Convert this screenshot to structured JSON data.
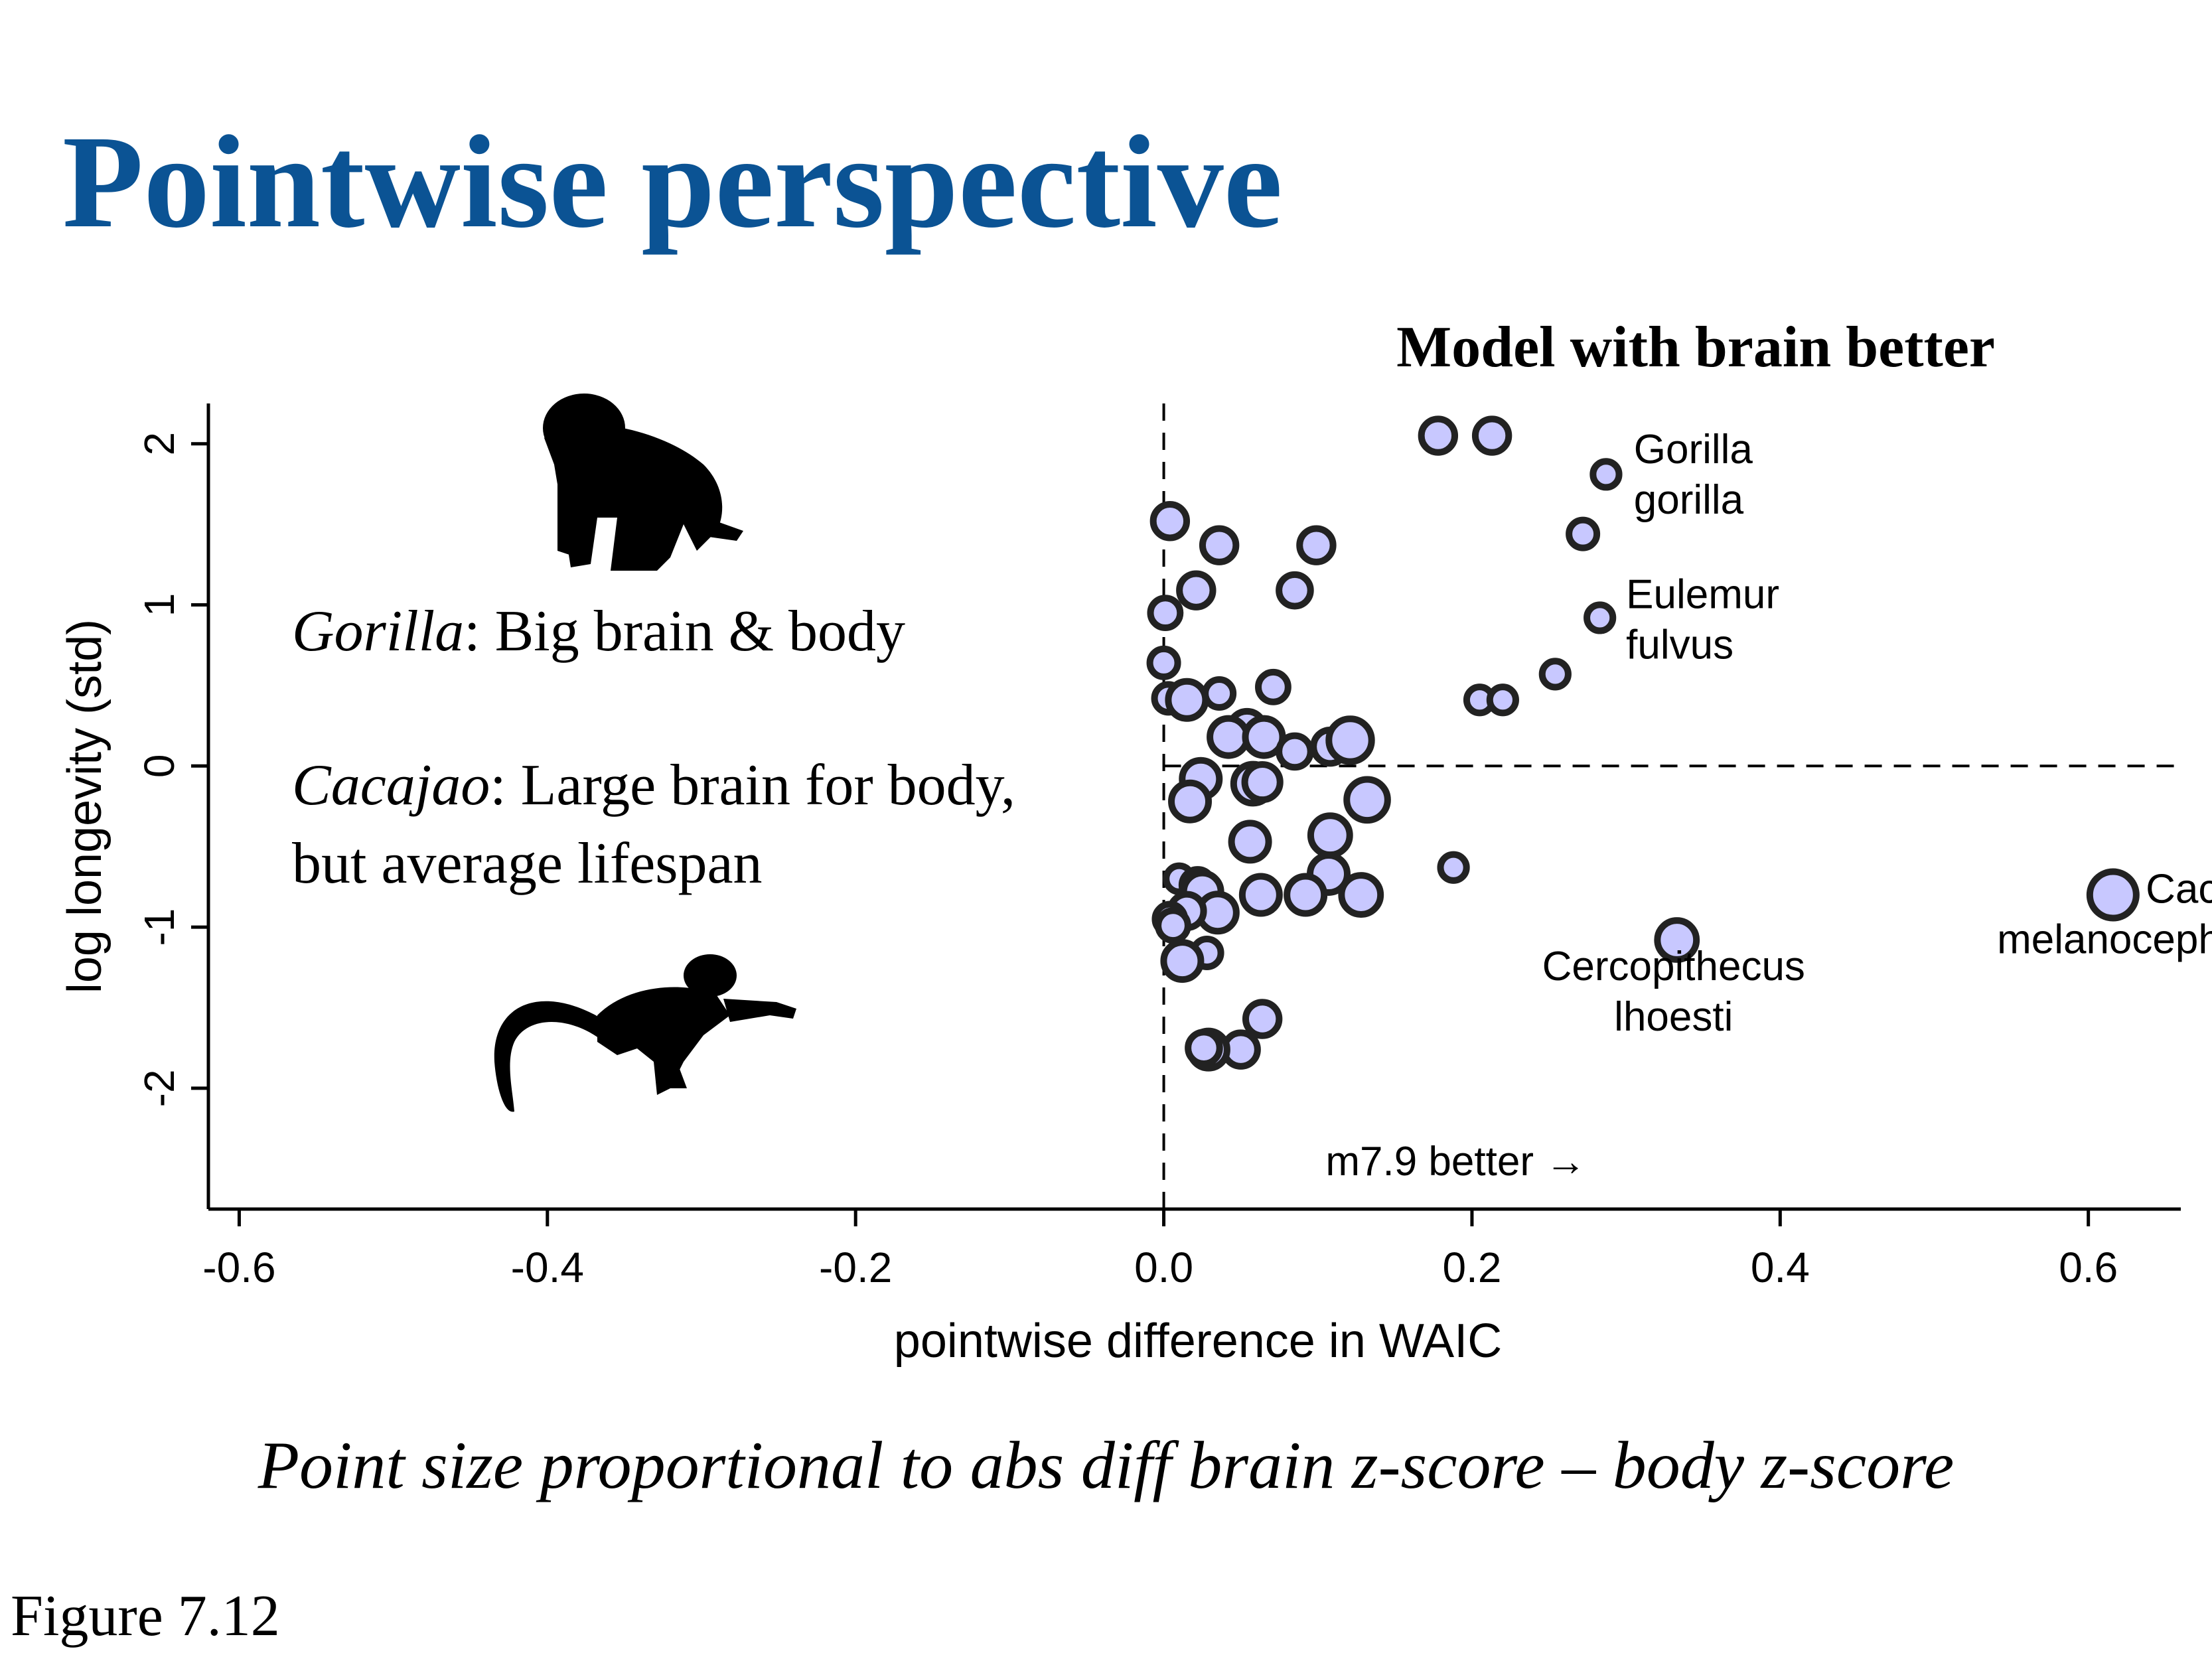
{
  "slide": {
    "title": "Pointwise perspective",
    "caption": "Point size proportional to abs diff brain z-score – body z-score",
    "figure_label": "Figure 7.12"
  },
  "chart_data": {
    "type": "scatter",
    "title": "Model with brain better",
    "xlabel": "pointwise difference in WAIC",
    "ylabel": "log longevity (std)",
    "xlim": [
      -0.62,
      0.66
    ],
    "ylim": [
      -2.75,
      2.25
    ],
    "x_ticks": [
      "-0.6",
      "-0.4",
      "-0.2",
      "0.0",
      "0.2",
      "0.4",
      "0.6"
    ],
    "y_ticks": [
      "-2",
      "-1",
      "0",
      "1",
      "2"
    ],
    "reference_lines": {
      "x": 0.0,
      "y": 0.0,
      "style": "dashed"
    },
    "grid": false,
    "marker_color": "#c8c8ff",
    "marker_edge_color": "#222222",
    "annotations": [
      {
        "text": "Gorilla\ngorilla",
        "x": 0.305,
        "y": 1.88
      },
      {
        "text": "Eulemur\nfulvus",
        "x": 0.3,
        "y": 0.98
      },
      {
        "text": "Cacajao\nmelanocephalus",
        "x": 0.55,
        "y": -0.85
      },
      {
        "text": "Cercopithecus\nlhoesti",
        "x": 0.33,
        "y": -1.33
      },
      {
        "text": "m7.9 better →",
        "x": 0.105,
        "y": -2.54
      }
    ],
    "insets": [
      {
        "text": "Gorilla: Big brain & body",
        "italic_prefix": "Gorilla",
        "rest": ": Big brain & body"
      },
      {
        "text": "Cacajao: Large brain for body, but average lifespan",
        "italic_prefix": "Cacajao",
        "rest": ": Large brain for body,",
        "line2": "but average lifespan"
      }
    ],
    "silhouettes": [
      "gorilla-silhouette",
      "monkey-silhouette"
    ],
    "points": [
      {
        "x": 0.178,
        "y": 2.05,
        "s": 0.9
      },
      {
        "x": 0.213,
        "y": 2.05,
        "s": 0.9
      },
      {
        "x": 0.287,
        "y": 1.81,
        "s": 0.7
      },
      {
        "x": 0.272,
        "y": 1.44,
        "s": 0.75
      },
      {
        "x": 0.283,
        "y": 0.92,
        "s": 0.7
      },
      {
        "x": 0.254,
        "y": 0.57,
        "s": 0.7
      },
      {
        "x": 0.205,
        "y": 0.41,
        "s": 0.7
      },
      {
        "x": 0.22,
        "y": 0.41,
        "s": 0.7
      },
      {
        "x": 0.188,
        "y": -0.63,
        "s": 0.7
      },
      {
        "x": 0.333,
        "y": -1.08,
        "s": 1.05
      },
      {
        "x": 0.616,
        "y": -0.8,
        "s": 1.25
      },
      {
        "x": 0.004,
        "y": 1.52,
        "s": 0.9
      },
      {
        "x": 0.036,
        "y": 1.37,
        "s": 0.9
      },
      {
        "x": 0.099,
        "y": 1.37,
        "s": 0.9
      },
      {
        "x": 0.021,
        "y": 1.09,
        "s": 0.9
      },
      {
        "x": 0.085,
        "y": 1.09,
        "s": 0.85
      },
      {
        "x": 0.001,
        "y": 0.95,
        "s": 0.8
      },
      {
        "x": 0.0,
        "y": 0.64,
        "s": 0.75
      },
      {
        "x": 0.071,
        "y": 0.49,
        "s": 0.8
      },
      {
        "x": 0.036,
        "y": 0.45,
        "s": 0.75
      },
      {
        "x": 0.003,
        "y": 0.42,
        "s": 0.75
      },
      {
        "x": 0.015,
        "y": 0.41,
        "s": 1.0
      },
      {
        "x": 0.054,
        "y": 0.23,
        "s": 0.95
      },
      {
        "x": 0.042,
        "y": 0.18,
        "s": 1.0
      },
      {
        "x": 0.065,
        "y": 0.18,
        "s": 1.0
      },
      {
        "x": 0.085,
        "y": 0.09,
        "s": 0.85
      },
      {
        "x": 0.108,
        "y": 0.12,
        "s": 0.9
      },
      {
        "x": 0.121,
        "y": 0.16,
        "s": 1.15
      },
      {
        "x": 0.024,
        "y": -0.08,
        "s": 1.0
      },
      {
        "x": 0.058,
        "y": -0.11,
        "s": 1.05
      },
      {
        "x": 0.064,
        "y": -0.1,
        "s": 0.95
      },
      {
        "x": 0.017,
        "y": -0.22,
        "s": 1.0
      },
      {
        "x": 0.132,
        "y": -0.21,
        "s": 1.1
      },
      {
        "x": 0.108,
        "y": -0.43,
        "s": 1.05
      },
      {
        "x": 0.056,
        "y": -0.47,
        "s": 1.0
      },
      {
        "x": 0.01,
        "y": -0.7,
        "s": 0.7
      },
      {
        "x": 0.022,
        "y": -0.74,
        "s": 0.85
      },
      {
        "x": 0.107,
        "y": -0.67,
        "s": 1.0
      },
      {
        "x": 0.025,
        "y": -0.78,
        "s": 1.0
      },
      {
        "x": 0.063,
        "y": -0.8,
        "s": 1.0
      },
      {
        "x": 0.092,
        "y": -0.8,
        "s": 1.0
      },
      {
        "x": 0.128,
        "y": -0.8,
        "s": 1.05
      },
      {
        "x": 0.035,
        "y": -0.91,
        "s": 1.0
      },
      {
        "x": 0.015,
        "y": -0.9,
        "s": 0.9
      },
      {
        "x": 0.004,
        "y": -0.95,
        "s": 0.8
      },
      {
        "x": 0.006,
        "y": -0.99,
        "s": 0.8
      },
      {
        "x": 0.028,
        "y": -1.16,
        "s": 0.75
      },
      {
        "x": 0.012,
        "y": -1.21,
        "s": 1.0
      },
      {
        "x": 0.064,
        "y": -1.57,
        "s": 0.9
      },
      {
        "x": 0.05,
        "y": -1.76,
        "s": 0.9
      },
      {
        "x": 0.029,
        "y": -1.76,
        "s": 1.0
      },
      {
        "x": 0.026,
        "y": -1.75,
        "s": 0.85
      }
    ]
  }
}
